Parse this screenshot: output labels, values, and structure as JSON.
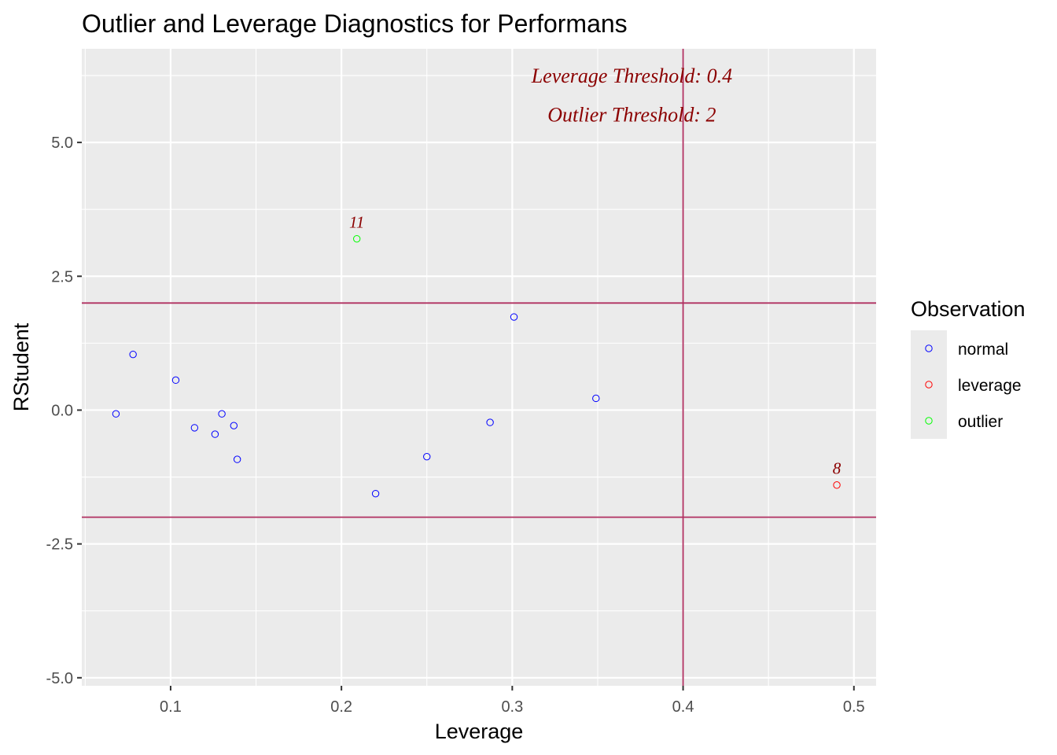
{
  "chart_data": {
    "type": "scatter",
    "title": "Outlier and Leverage Diagnostics for Performans",
    "xlabel": "Leverage",
    "ylabel": "RStudent",
    "xlim": [
      0.048,
      0.513
    ],
    "ylim": [
      -5.15,
      6.75
    ],
    "x_ticks": [
      0.1,
      0.2,
      0.3,
      0.4,
      0.5
    ],
    "x_tick_labels": [
      "0.1",
      "0.2",
      "0.3",
      "0.4",
      "0.5"
    ],
    "y_ticks": [
      -5.0,
      -2.5,
      0.0,
      2.5,
      5.0
    ],
    "y_tick_labels": [
      "-5.0",
      "-2.5",
      "0.0",
      "2.5",
      "5.0"
    ],
    "grid": true,
    "thresholds": {
      "leverage": 0.4,
      "rstudent_upper": 2,
      "rstudent_lower": -2,
      "line_color": "#b03060"
    },
    "annotations": [
      {
        "text": "Leverage Threshold: 0.4",
        "x": 0.37,
        "y": 6.25
      },
      {
        "text": "Outlier Threshold: 2",
        "x": 0.37,
        "y": 5.52
      }
    ],
    "annotation_color": "#8b0000",
    "legend": {
      "title": "Observation",
      "position": "right",
      "entries": [
        {
          "name": "normal",
          "color": "#0000ff"
        },
        {
          "name": "leverage",
          "color": "#ff0000"
        },
        {
          "name": "outlier",
          "color": "#00ff00"
        }
      ]
    },
    "points": [
      {
        "x": 0.068,
        "y": -0.07,
        "group": "normal",
        "label": ""
      },
      {
        "x": 0.078,
        "y": 1.04,
        "group": "normal",
        "label": ""
      },
      {
        "x": 0.103,
        "y": 0.56,
        "group": "normal",
        "label": ""
      },
      {
        "x": 0.114,
        "y": -0.33,
        "group": "normal",
        "label": ""
      },
      {
        "x": 0.126,
        "y": -0.45,
        "group": "normal",
        "label": ""
      },
      {
        "x": 0.13,
        "y": -0.07,
        "group": "normal",
        "label": ""
      },
      {
        "x": 0.137,
        "y": -0.29,
        "group": "normal",
        "label": ""
      },
      {
        "x": 0.139,
        "y": -0.92,
        "group": "normal",
        "label": ""
      },
      {
        "x": 0.209,
        "y": 3.2,
        "group": "outlier",
        "label": "11"
      },
      {
        "x": 0.22,
        "y": -1.56,
        "group": "normal",
        "label": ""
      },
      {
        "x": 0.25,
        "y": -0.87,
        "group": "normal",
        "label": ""
      },
      {
        "x": 0.287,
        "y": -0.23,
        "group": "normal",
        "label": ""
      },
      {
        "x": 0.301,
        "y": 1.74,
        "group": "normal",
        "label": ""
      },
      {
        "x": 0.349,
        "y": 0.22,
        "group": "normal",
        "label": ""
      },
      {
        "x": 0.49,
        "y": -1.4,
        "group": "leverage",
        "label": "8"
      }
    ]
  }
}
